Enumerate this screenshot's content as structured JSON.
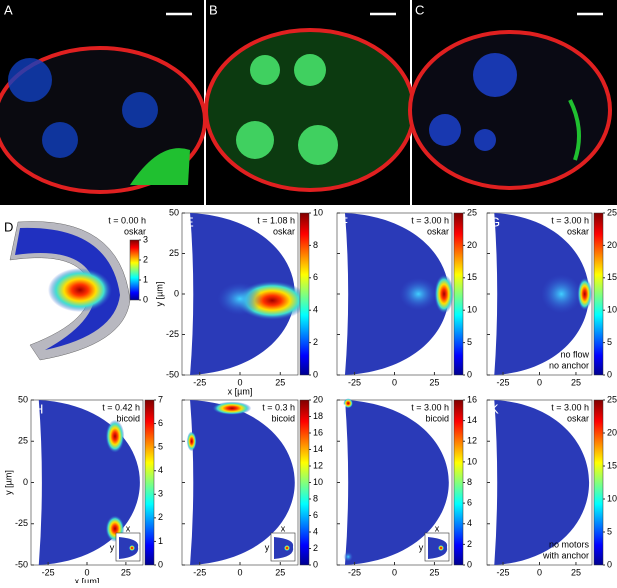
{
  "panels_top": [
    {
      "label": "A"
    },
    {
      "label": "B"
    },
    {
      "label": "C"
    }
  ],
  "panel_d": {
    "label": "D",
    "time": "t = 0.00 h",
    "species": "oskar",
    "colorbar_ticks": [
      0,
      1,
      2,
      3
    ]
  },
  "plots": [
    {
      "label": "E",
      "time": "t = 1.08 h",
      "species": "oskar",
      "notes": [],
      "colorbar_ticks": [
        0,
        2,
        4,
        6,
        8,
        10
      ]
    },
    {
      "label": "F",
      "time": "t = 3.00 h",
      "species": "oskar",
      "notes": [],
      "colorbar_ticks": [
        0,
        5,
        10,
        15,
        20,
        25
      ]
    },
    {
      "label": "G",
      "time": "t = 3.00 h",
      "species": "oskar",
      "notes": [
        "no flow",
        "no anchor"
      ],
      "colorbar_ticks": [
        0,
        5,
        10,
        15,
        20,
        25
      ]
    },
    {
      "label": "H",
      "time": "t = 0.42 h",
      "species": "bicoid",
      "notes": [],
      "colorbar_ticks": [
        0,
        1,
        2,
        3,
        4,
        5,
        6,
        7
      ]
    },
    {
      "label": "I",
      "time": "t = 0.3 h",
      "species": "bicoid",
      "notes": [],
      "colorbar_ticks": [
        0,
        2,
        4,
        6,
        8,
        10,
        12,
        14,
        16,
        18,
        20
      ]
    },
    {
      "label": "J",
      "time": "t = 3.00 h",
      "species": "bicoid",
      "notes": [],
      "colorbar_ticks": [
        0,
        2,
        4,
        6,
        8,
        10,
        12,
        14,
        16
      ]
    },
    {
      "label": "K",
      "time": "t = 3.00 h",
      "species": "oskar",
      "notes": [
        "no motors",
        "with anchor"
      ],
      "colorbar_ticks": [
        0,
        5,
        10,
        15,
        20,
        25
      ]
    }
  ],
  "axes": {
    "x_label": "x [µm]",
    "y_label": "y [µm]",
    "xlim": [
      -36,
      36
    ],
    "ylim": [
      -50,
      50
    ],
    "xticks": [
      -25,
      0,
      25
    ],
    "yticks": [
      50,
      25,
      0,
      -25,
      -50
    ]
  },
  "inset_labels": [
    "x",
    "y"
  ]
}
